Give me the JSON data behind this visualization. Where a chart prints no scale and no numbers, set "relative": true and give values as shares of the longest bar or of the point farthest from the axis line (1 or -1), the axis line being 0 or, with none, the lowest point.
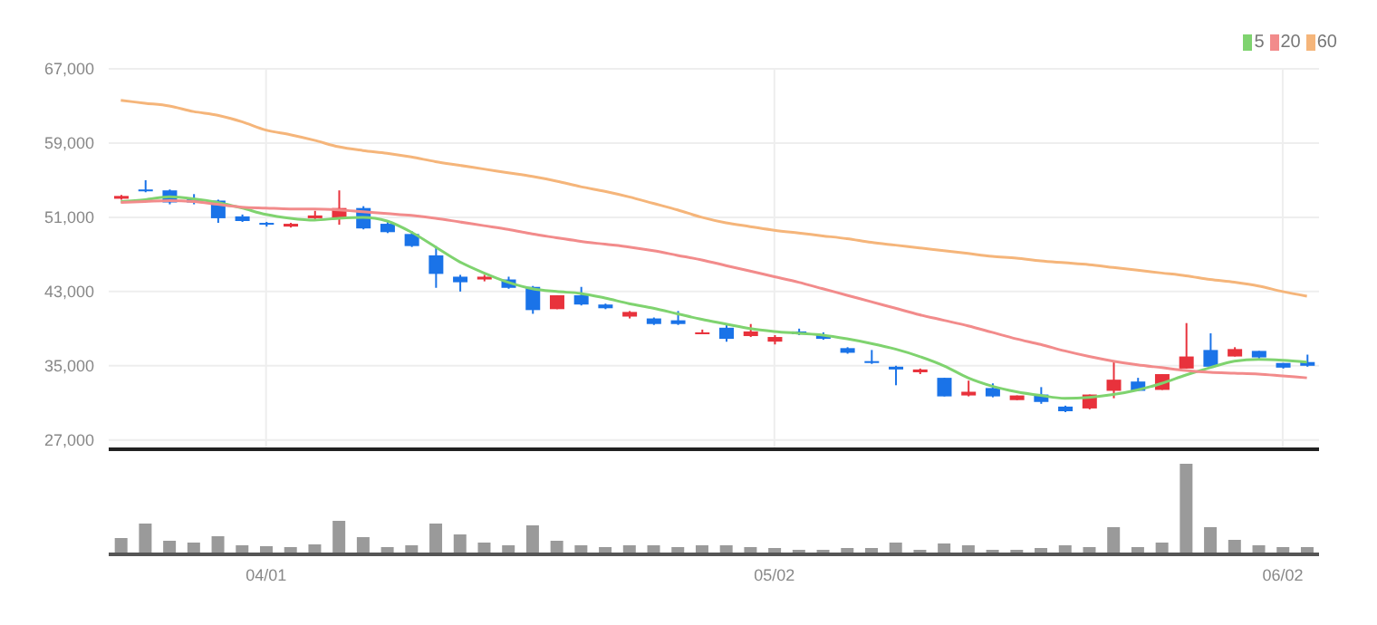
{
  "chart_data": [
    {
      "type": "candlestick",
      "categories": [
        null,
        null,
        null,
        null,
        null,
        null,
        null,
        null,
        null,
        null,
        null,
        null,
        null,
        null,
        null,
        null,
        null,
        null,
        null,
        null,
        null,
        null,
        null,
        null,
        null,
        null,
        null,
        null,
        null,
        null,
        null,
        null,
        null,
        null,
        null,
        null,
        null,
        null,
        null,
        null,
        null,
        null,
        null,
        null,
        null,
        null,
        null,
        null,
        null,
        null
      ],
      "ohlc": [
        [
          53000,
          53400,
          52900,
          53300
        ],
        [
          54000,
          55000,
          53700,
          53800
        ],
        [
          53900,
          54000,
          52400,
          52600
        ],
        [
          53000,
          53500,
          52400,
          52600
        ],
        [
          52800,
          52900,
          50400,
          50900
        ],
        [
          51100,
          51300,
          50500,
          50600
        ],
        [
          50400,
          50500,
          50000,
          50200
        ],
        [
          50000,
          50400,
          49900,
          50300
        ],
        [
          50900,
          51700,
          50800,
          51200
        ],
        [
          50900,
          53900,
          50200,
          52000
        ],
        [
          52000,
          52200,
          49700,
          49800
        ],
        [
          50300,
          50600,
          49300,
          49400
        ],
        [
          49200,
          49500,
          47800,
          47900
        ],
        [
          46900,
          47900,
          43400,
          44900
        ],
        [
          44600,
          44800,
          43000,
          44000
        ],
        [
          44300,
          44800,
          44100,
          44600
        ],
        [
          44300,
          44600,
          43300,
          43400
        ],
        [
          43500,
          43600,
          40600,
          41000
        ],
        [
          41100,
          42600,
          41100,
          42600
        ],
        [
          42600,
          43500,
          41500,
          41600
        ],
        [
          41600,
          41700,
          41100,
          41200
        ],
        [
          40300,
          40900,
          40100,
          40800
        ],
        [
          40100,
          40200,
          39400,
          39500
        ],
        [
          39900,
          40900,
          39400,
          39500
        ],
        [
          38400,
          38900,
          38400,
          38600
        ],
        [
          39100,
          39500,
          37600,
          37900
        ],
        [
          38200,
          39500,
          38100,
          38700
        ],
        [
          37600,
          38300,
          37300,
          38100
        ],
        [
          38700,
          39000,
          38300,
          38400
        ],
        [
          38300,
          38600,
          37800,
          37900
        ],
        [
          36900,
          37000,
          36300,
          36400
        ],
        [
          35500,
          36700,
          35200,
          35300
        ],
        [
          34900,
          35000,
          32900,
          34600
        ],
        [
          34300,
          34700,
          34100,
          34600
        ],
        [
          33700,
          33700,
          31700,
          31700
        ],
        [
          31800,
          33400,
          31700,
          32200
        ],
        [
          32600,
          33100,
          31600,
          31700
        ],
        [
          31300,
          31800,
          31300,
          31800
        ],
        [
          31900,
          32700,
          30900,
          31100
        ],
        [
          30600,
          30700,
          30000,
          30100
        ],
        [
          30400,
          31900,
          30300,
          31900
        ],
        [
          32300,
          35400,
          31500,
          33500
        ],
        [
          33300,
          33700,
          32300,
          32300
        ],
        [
          32400,
          34100,
          32400,
          34100
        ],
        [
          34700,
          39600,
          34700,
          36000
        ],
        [
          36700,
          38500,
          34900,
          34900
        ],
        [
          36000,
          37000,
          36000,
          36800
        ],
        [
          36600,
          36600,
          35700,
          35900
        ],
        [
          35300,
          35300,
          34700,
          34800
        ],
        [
          35400,
          36200,
          34900,
          35000
        ]
      ],
      "colors": [
        "#e8323c",
        "#1a73e8",
        "#1a73e8",
        "#1a73e8",
        "#1a73e8",
        "#1a73e8",
        "#1a73e8",
        "#e8323c",
        "#e8323c",
        "#e8323c",
        "#1a73e8",
        "#1a73e8",
        "#1a73e8",
        "#1a73e8",
        "#1a73e8",
        "#e8323c",
        "#1a73e8",
        "#1a73e8",
        "#e8323c",
        "#1a73e8",
        "#1a73e8",
        "#e8323c",
        "#1a73e8",
        "#1a73e8",
        "#e8323c",
        "#1a73e8",
        "#e8323c",
        "#e8323c",
        "#1a73e8",
        "#1a73e8",
        "#1a73e8",
        "#1a73e8",
        "#1a73e8",
        "#e8323c",
        "#1a73e8",
        "#e8323c",
        "#1a73e8",
        "#e8323c",
        "#1a73e8",
        "#1a73e8",
        "#e8323c",
        "#e8323c",
        "#1a73e8",
        "#e8323c",
        "#e8323c",
        "#1a73e8",
        "#e8323c",
        "#1a73e8",
        "#1a73e8",
        "#1a73e8"
      ],
      "series": [
        {
          "name": "5",
          "type": "line",
          "color": "#7fd36f",
          "values": [
            52700,
            52900,
            53200,
            53000,
            52600,
            52000,
            51300,
            50900,
            50700,
            50900,
            51000,
            50600,
            49400,
            47800,
            46200,
            45000,
            44000,
            43300,
            43000,
            42800,
            42300,
            41700,
            41200,
            40600,
            40000,
            39500,
            39000,
            38700,
            38500,
            38300,
            37900,
            37400,
            36800,
            36000,
            35000,
            33700,
            32800,
            32200,
            31800,
            31500,
            31600,
            31900,
            32400,
            33100,
            34000,
            34800,
            35500,
            35700,
            35600,
            35400
          ]
        },
        {
          "name": "20",
          "type": "line",
          "color": "#f28b8b",
          "values": [
            52600,
            52700,
            52800,
            52700,
            52400,
            52100,
            52000,
            51900,
            51900,
            51800,
            51600,
            51400,
            51200,
            50900,
            50500,
            50100,
            49700,
            49200,
            48800,
            48400,
            48100,
            47800,
            47400,
            46900,
            46400,
            45800,
            45200,
            44600,
            44000,
            43300,
            42600,
            41900,
            41200,
            40500,
            39900,
            39300,
            38600,
            37900,
            37300,
            36600,
            36000,
            35500,
            35100,
            34800,
            34500,
            34300,
            34200,
            34100,
            33900,
            33700
          ]
        },
        {
          "name": "60",
          "type": "line",
          "color": "#f5b57a",
          "values": [
            63600,
            63300,
            63000,
            62400,
            62000,
            61300,
            60400,
            59900,
            59300,
            58600,
            58200,
            57900,
            57500,
            57000,
            56600,
            56200,
            55800,
            55400,
            54900,
            54300,
            53800,
            53200,
            52500,
            51800,
            51000,
            50400,
            50000,
            49600,
            49300,
            49000,
            48700,
            48300,
            48000,
            47700,
            47400,
            47100,
            46800,
            46600,
            46300,
            46100,
            45900,
            45600,
            45300,
            45000,
            44700,
            44300,
            44000,
            43600,
            43000,
            42500
          ]
        }
      ],
      "ylim": [
        26000,
        67000
      ],
      "yticks": [
        {
          "value": 27000,
          "label": "27,000"
        },
        {
          "value": 35000,
          "label": "35,000"
        },
        {
          "value": 43000,
          "label": "43,000"
        },
        {
          "value": 51000,
          "label": "51,000"
        },
        {
          "value": 59000,
          "label": "59,000"
        },
        {
          "value": 67000,
          "label": "67,000"
        }
      ],
      "grid": true,
      "legend": "top right",
      "marker": "none",
      "tick_labels": "y"
    },
    {
      "type": "bar",
      "relative": true,
      "color": "#9a9a9a",
      "tick_labels": "x",
      "categories": [
        null,
        null,
        null,
        null,
        null,
        null,
        "04/01",
        null,
        null,
        null,
        null,
        null,
        null,
        null,
        null,
        null,
        null,
        null,
        null,
        null,
        null,
        null,
        null,
        null,
        null,
        null,
        null,
        "05/02",
        null,
        null,
        null,
        null,
        null,
        null,
        null,
        null,
        null,
        null,
        null,
        null,
        null,
        null,
        null,
        null,
        null,
        null,
        null,
        null,
        "06/02",
        null
      ],
      "values": [
        0.18,
        0.34,
        0.15,
        0.13,
        0.2,
        0.1,
        0.09,
        0.08,
        0.11,
        0.37,
        0.19,
        0.08,
        0.1,
        0.34,
        0.22,
        0.13,
        0.1,
        0.32,
        0.15,
        0.1,
        0.08,
        0.1,
        0.1,
        0.08,
        0.1,
        0.1,
        0.08,
        0.07,
        0.05,
        0.05,
        0.07,
        0.07,
        0.13,
        0.05,
        0.12,
        0.1,
        0.05,
        0.05,
        0.07,
        0.1,
        0.08,
        0.3,
        0.08,
        0.13,
        1,
        0.3,
        0.16,
        0.1,
        0.08,
        0.08
      ]
    }
  ]
}
